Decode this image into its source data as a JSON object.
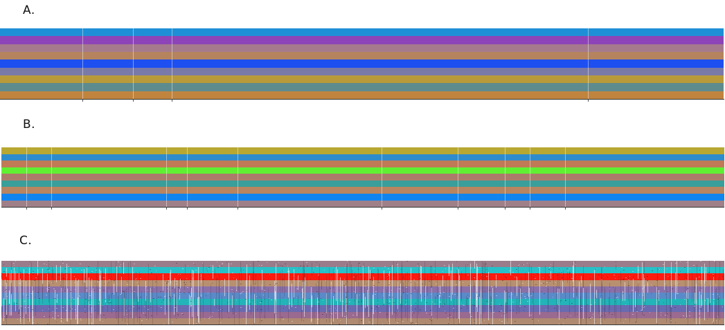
{
  "panels": [
    {
      "id": "a",
      "label": "A.",
      "bands": [
        "#1e8fd6",
        "#8e44b8",
        "#a57a8d",
        "#b5835d",
        "#1e4ff0",
        "#7a7aa8",
        "#b89a3a",
        "#5e8b8e",
        "#c0843f"
      ],
      "gaps": [
        119,
        192,
        248,
        849
      ],
      "texture": false
    },
    {
      "id": "b",
      "label": "B.",
      "bands": [
        "#b8a832",
        "#2e8ccc",
        "#c07a55",
        "#60f032",
        "#ac7c6a",
        "#3a9e9a",
        "#b88560",
        "#1085f0",
        "#a08088"
      ],
      "gaps": [
        36,
        72,
        238,
        268,
        341,
        549,
        659,
        727,
        763,
        814
      ],
      "texture": false
    },
    {
      "id": "c",
      "label": "C.",
      "bands": [
        "#9a7c8a",
        "#28c0c8",
        "#ff1a10",
        "#b89070",
        "#8a70a8",
        "#5a8ac8",
        "#22b4b8",
        "#6a6ab0",
        "#9a6a90",
        "#b08a70"
      ],
      "gaps": [],
      "texture": true
    }
  ]
}
